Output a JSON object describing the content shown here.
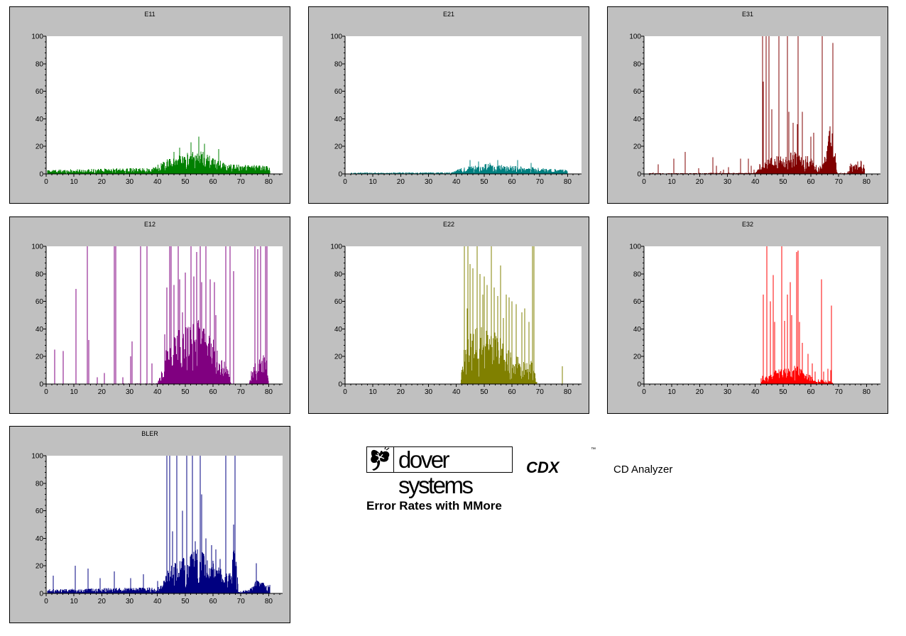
{
  "colors": {
    "panel_bg": "#c0c0c0",
    "plot_bg": "#ffffff"
  },
  "branding": {
    "company": "dover systems",
    "product": "CDX",
    "trademark": "™",
    "product_desc": "CD Analyzer",
    "report_title": "Error Rates with MMore",
    "logo_icon": "butterfly-icon"
  },
  "chart_data": [
    {
      "type": "bar",
      "id": "E11",
      "title": "E11",
      "color": "#008000",
      "xlim": [
        0,
        85
      ],
      "ylim": [
        0,
        100
      ],
      "xticks": [
        0,
        10,
        20,
        30,
        40,
        50,
        60,
        70,
        80
      ],
      "yticks": [
        0,
        20,
        40,
        60,
        80,
        100
      ],
      "x_range": [
        0.5,
        80.5
      ],
      "profile": [
        [
          0,
          2
        ],
        [
          38,
          3
        ],
        [
          43,
          7
        ],
        [
          50,
          10
        ],
        [
          55,
          12
        ],
        [
          60,
          8
        ],
        [
          65,
          5
        ],
        [
          80,
          4
        ]
      ],
      "spikes": [
        [
          55,
          27
        ],
        [
          52,
          23
        ],
        [
          57,
          22
        ],
        [
          48,
          19
        ],
        [
          62,
          18
        ],
        [
          46,
          16
        ]
      ]
    },
    {
      "type": "bar",
      "id": "E21",
      "title": "E21",
      "color": "#008080",
      "xlim": [
        0,
        85
      ],
      "ylim": [
        0,
        100
      ],
      "xticks": [
        0,
        10,
        20,
        30,
        40,
        50,
        60,
        70,
        80
      ],
      "yticks": [
        0,
        20,
        40,
        60,
        80,
        100
      ],
      "x_range": [
        2,
        80
      ],
      "profile": [
        [
          0,
          0.6
        ],
        [
          38,
          0.8
        ],
        [
          42,
          3
        ],
        [
          50,
          5
        ],
        [
          60,
          4
        ],
        [
          70,
          3
        ],
        [
          80,
          2
        ]
      ],
      "spikes": [
        [
          45,
          10
        ],
        [
          48,
          9
        ],
        [
          55,
          10
        ],
        [
          62,
          10
        ],
        [
          67,
          8
        ],
        [
          52,
          8
        ]
      ]
    },
    {
      "type": "bar",
      "id": "E31",
      "title": "E31",
      "color": "#800000",
      "xlim": [
        0,
        85
      ],
      "ylim": [
        0,
        100
      ],
      "xticks": [
        0,
        10,
        20,
        30,
        40,
        50,
        60,
        70,
        80
      ],
      "yticks": [
        0,
        20,
        40,
        60,
        80,
        100
      ],
      "x_range": [
        0.5,
        79.5
      ],
      "profile": [
        [
          0,
          0.3
        ],
        [
          40,
          0.6
        ],
        [
          42,
          6
        ],
        [
          48,
          9
        ],
        [
          55,
          11
        ],
        [
          60,
          8
        ],
        [
          63,
          3
        ],
        [
          64,
          6
        ],
        [
          66,
          14
        ],
        [
          67.3,
          32
        ],
        [
          68.5,
          14
        ],
        [
          69.5,
          0.5
        ],
        [
          73,
          0.5
        ],
        [
          74,
          5
        ],
        [
          79,
          7
        ],
        [
          79.5,
          0
        ]
      ],
      "spikes": [
        [
          42.5,
          100
        ],
        [
          44,
          100
        ],
        [
          45,
          100
        ],
        [
          48.5,
          100
        ],
        [
          51.5,
          100
        ],
        [
          55.5,
          100
        ],
        [
          64,
          100
        ],
        [
          67.8,
          95
        ],
        [
          42.8,
          67
        ],
        [
          46,
          47
        ],
        [
          52,
          45
        ],
        [
          53.5,
          37
        ],
        [
          57,
          45
        ],
        [
          55.2,
          36
        ],
        [
          60,
          27
        ],
        [
          61,
          30
        ],
        [
          3.3,
          1
        ],
        [
          5.2,
          7
        ],
        [
          10.8,
          11
        ],
        [
          14.8,
          16
        ],
        [
          19.7,
          4
        ],
        [
          24.8,
          12
        ],
        [
          27.5,
          2
        ],
        [
          30.5,
          5
        ],
        [
          34.8,
          11
        ],
        [
          37.5,
          11
        ],
        [
          38.5,
          6
        ],
        [
          26,
          6
        ],
        [
          28.5,
          3
        ],
        [
          39.5,
          3
        ]
      ]
    },
    {
      "type": "bar",
      "id": "E12",
      "title": "E12",
      "color": "#800080",
      "xlim": [
        0,
        85
      ],
      "ylim": [
        0,
        100
      ],
      "xticks": [
        0,
        10,
        20,
        30,
        40,
        50,
        60,
        70,
        80
      ],
      "yticks": [
        0,
        20,
        40,
        60,
        80,
        100
      ],
      "x_range": [
        2,
        80
      ],
      "profile": [
        [
          0,
          0
        ],
        [
          40,
          0.4
        ],
        [
          42,
          8
        ],
        [
          44,
          24
        ],
        [
          50,
          30
        ],
        [
          55,
          32
        ],
        [
          60,
          22
        ],
        [
          63,
          16
        ],
        [
          66,
          4
        ],
        [
          66.5,
          0
        ],
        [
          73,
          0
        ],
        [
          74,
          8
        ],
        [
          79,
          18
        ],
        [
          80,
          0
        ]
      ],
      "spikes": [
        [
          3,
          25
        ],
        [
          6,
          24
        ],
        [
          10.8,
          69
        ],
        [
          14.8,
          100
        ],
        [
          15.2,
          32
        ],
        [
          18.5,
          5
        ],
        [
          21,
          8
        ],
        [
          24.5,
          100
        ],
        [
          25,
          100
        ],
        [
          27.5,
          5
        ],
        [
          30.5,
          20
        ],
        [
          31,
          31
        ],
        [
          34,
          100
        ],
        [
          36.3,
          100
        ],
        [
          38,
          15
        ],
        [
          44.5,
          100
        ],
        [
          45,
          100
        ],
        [
          47.5,
          100
        ],
        [
          52,
          100
        ],
        [
          55.5,
          100
        ],
        [
          57.5,
          100
        ],
        [
          64.5,
          100
        ],
        [
          66,
          100
        ],
        [
          67.5,
          82
        ],
        [
          75,
          100
        ],
        [
          77,
          100
        ],
        [
          79,
          100
        ],
        [
          79.3,
          100
        ],
        [
          76,
          98
        ],
        [
          48,
          76
        ],
        [
          50,
          81
        ],
        [
          53,
          78
        ],
        [
          54,
          96
        ],
        [
          56,
          74
        ],
        [
          59,
          76
        ],
        [
          60.5,
          74
        ],
        [
          61,
          50
        ],
        [
          43.5,
          70
        ],
        [
          46,
          72
        ],
        [
          49,
          52
        ],
        [
          42.5,
          36
        ]
      ]
    },
    {
      "type": "bar",
      "id": "E22",
      "title": "E22",
      "color": "#808000",
      "xlim": [
        0,
        85
      ],
      "ylim": [
        0,
        100
      ],
      "xticks": [
        0,
        10,
        20,
        30,
        40,
        50,
        60,
        70,
        80
      ],
      "yticks": [
        0,
        20,
        40,
        60,
        80,
        100
      ],
      "x_range": [
        41.5,
        69
      ],
      "profile": [
        [
          41.5,
          2
        ],
        [
          43,
          20
        ],
        [
          46,
          30
        ],
        [
          50,
          28
        ],
        [
          54,
          26
        ],
        [
          58,
          18
        ],
        [
          62,
          14
        ],
        [
          65,
          10
        ],
        [
          67,
          12
        ],
        [
          68.5,
          6
        ],
        [
          69,
          0
        ]
      ],
      "spikes": [
        [
          42.8,
          100
        ],
        [
          44.2,
          100
        ],
        [
          47.5,
          100
        ],
        [
          52.5,
          100
        ],
        [
          67.5,
          100
        ],
        [
          67.8,
          100
        ],
        [
          68,
          100
        ],
        [
          45,
          87
        ],
        [
          46,
          84
        ],
        [
          44,
          55
        ],
        [
          48.5,
          80
        ],
        [
          50,
          78
        ],
        [
          51,
          72
        ],
        [
          53.5,
          70
        ],
        [
          55,
          64
        ],
        [
          56,
          86
        ],
        [
          58,
          65
        ],
        [
          59,
          63
        ],
        [
          60,
          60
        ],
        [
          61.5,
          58
        ],
        [
          63.5,
          52
        ],
        [
          64.5,
          55
        ],
        [
          66,
          45
        ],
        [
          57,
          48
        ],
        [
          49.5,
          65
        ],
        [
          78,
          13
        ]
      ]
    },
    {
      "type": "bar",
      "id": "E32",
      "title": "E32",
      "color": "#ff0000",
      "xlim": [
        0,
        85
      ],
      "ylim": [
        0,
        100
      ],
      "xticks": [
        0,
        10,
        20,
        30,
        40,
        50,
        60,
        70,
        80
      ],
      "yticks": [
        0,
        20,
        40,
        60,
        80,
        100
      ],
      "x_range": [
        42,
        68
      ],
      "profile": [
        [
          42,
          0.5
        ],
        [
          43,
          3
        ],
        [
          46,
          6
        ],
        [
          50,
          8
        ],
        [
          55,
          9
        ],
        [
          58,
          6
        ],
        [
          60,
          4
        ],
        [
          62,
          1
        ],
        [
          63,
          3
        ],
        [
          65,
          2
        ],
        [
          68,
          1
        ]
      ],
      "spikes": [
        [
          42,
          4
        ],
        [
          42.5,
          6
        ],
        [
          43,
          65
        ],
        [
          44.2,
          100
        ],
        [
          45.5,
          60
        ],
        [
          46.5,
          79
        ],
        [
          47,
          45
        ],
        [
          49.5,
          100
        ],
        [
          50.5,
          46
        ],
        [
          51.5,
          65
        ],
        [
          52.5,
          74
        ],
        [
          53,
          50
        ],
        [
          55,
          96
        ],
        [
          55.3,
          97
        ],
        [
          56,
          45
        ],
        [
          57,
          30
        ],
        [
          59,
          22
        ],
        [
          60.5,
          15
        ],
        [
          61.5,
          9
        ],
        [
          63.8,
          76
        ],
        [
          64.5,
          9
        ],
        [
          66,
          11
        ],
        [
          67.2,
          10
        ],
        [
          67.5,
          57
        ]
      ]
    },
    {
      "type": "bar",
      "id": "BLER",
      "title": "BLER",
      "color": "#000080",
      "xlim": [
        0,
        85
      ],
      "ylim": [
        0,
        100
      ],
      "xticks": [
        0,
        10,
        20,
        30,
        40,
        50,
        60,
        70,
        80
      ],
      "yticks": [
        0,
        20,
        40,
        60,
        80,
        100
      ],
      "x_range": [
        0.5,
        80.5
      ],
      "profile": [
        [
          0,
          2
        ],
        [
          40,
          3
        ],
        [
          42,
          5
        ],
        [
          43,
          12
        ],
        [
          50,
          18
        ],
        [
          55,
          22
        ],
        [
          60,
          16
        ],
        [
          65,
          10
        ],
        [
          66.5,
          10
        ],
        [
          67.5,
          30
        ],
        [
          68.5,
          12
        ],
        [
          69.5,
          1
        ],
        [
          73,
          2
        ],
        [
          76,
          7
        ],
        [
          80,
          5
        ]
      ],
      "spikes": [
        [
          43.5,
          100
        ],
        [
          44.5,
          100
        ],
        [
          47,
          100
        ],
        [
          50.5,
          100
        ],
        [
          52.5,
          100
        ],
        [
          55.5,
          100
        ],
        [
          64.5,
          100
        ],
        [
          67.8,
          100
        ],
        [
          67.5,
          50
        ],
        [
          2.5,
          13
        ],
        [
          10.5,
          20
        ],
        [
          15,
          18
        ],
        [
          19.5,
          11
        ],
        [
          24.5,
          16
        ],
        [
          30.5,
          11
        ],
        [
          35,
          14
        ],
        [
          40,
          9
        ],
        [
          56,
          72
        ],
        [
          49,
          60
        ],
        [
          53.5,
          38
        ],
        [
          57.5,
          40
        ],
        [
          59.5,
          35
        ],
        [
          61,
          32
        ],
        [
          45.5,
          45
        ],
        [
          62.5,
          25
        ],
        [
          75.5,
          22
        ]
      ]
    }
  ]
}
